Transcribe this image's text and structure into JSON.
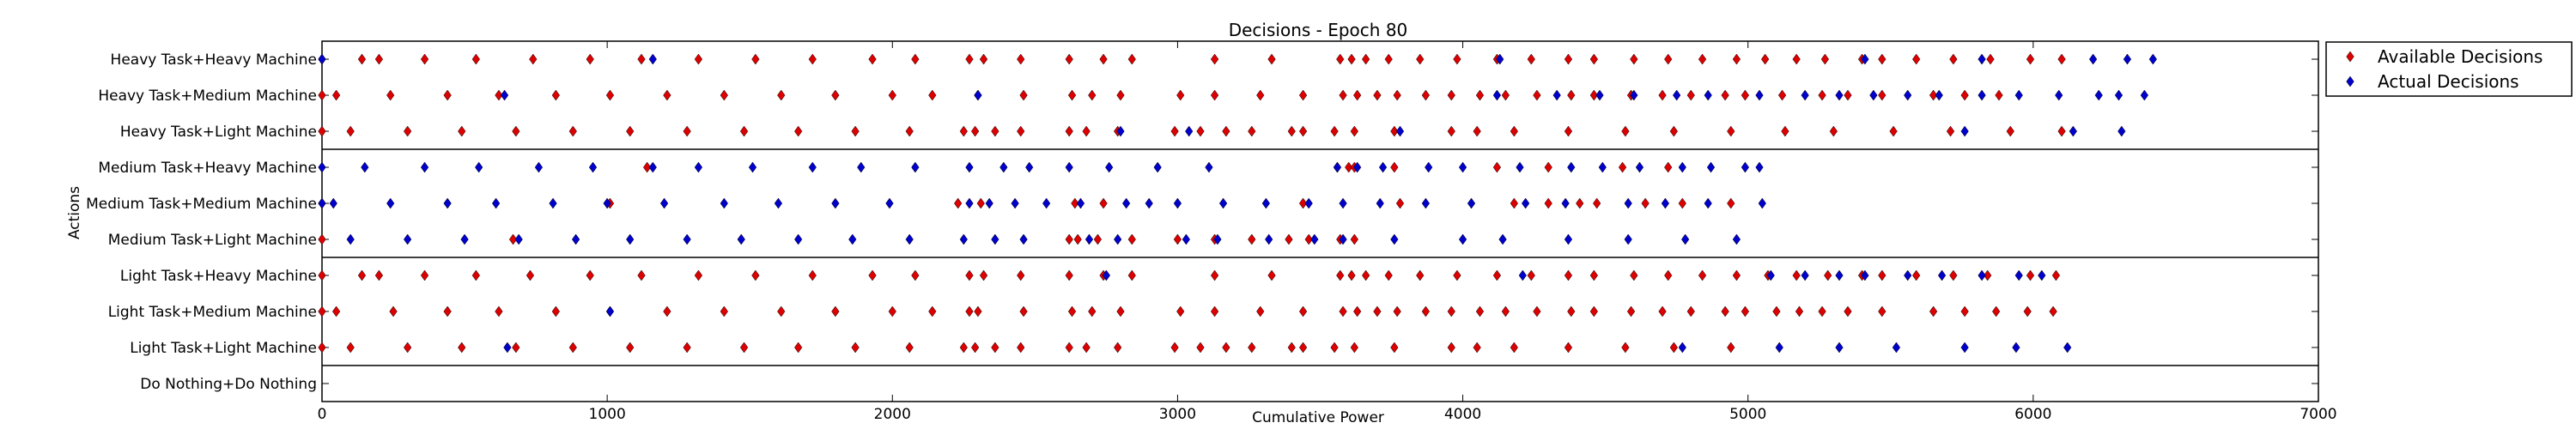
{
  "chart_data": {
    "type": "scatter",
    "title": "Decisions - Epoch 80",
    "xlabel": "Cumulative Power",
    "ylabel": "Actions",
    "xlim": [
      0,
      7000
    ],
    "xticks": [
      0,
      1000,
      2000,
      3000,
      4000,
      5000,
      6000,
      7000
    ],
    "categories": [
      "Heavy Task+Heavy Machine",
      "Heavy Task+Medium Machine",
      "Heavy Task+Light Machine",
      "Medium Task+Heavy Machine",
      "Medium Task+Medium Machine",
      "Medium Task+Light Machine",
      "Light Task+Heavy Machine",
      "Light Task+Medium Machine",
      "Light Task+Light Machine",
      "Do Nothing+Do Nothing"
    ],
    "group_separators_after": [
      2,
      5,
      8
    ],
    "legend": {
      "placement": "outside-top-right"
    },
    "colors": {
      "available": "#dd0000",
      "actual": "#0000cc"
    },
    "series": [
      {
        "name": "Available Decisions",
        "marker": "diamond",
        "points": [
          {
            "category": "Heavy Task+Heavy Machine",
            "x": [
              0,
              140,
              200,
              360,
              540,
              740,
              940,
              1120,
              1320,
              1520,
              1720,
              1930,
              2080,
              2270,
              2320,
              2450,
              2620,
              2740,
              2840,
              3130,
              3330,
              3570,
              3610,
              3660,
              3740,
              3850,
              3980,
              4120,
              4240,
              4370,
              4460,
              4600,
              4720,
              4840,
              4960,
              5060,
              5170,
              5270,
              5400,
              5470,
              5590,
              5720,
              5850,
              5990,
              6100
            ]
          },
          {
            "category": "Heavy Task+Medium Machine",
            "x": [
              0,
              50,
              240,
              440,
              620,
              820,
              1010,
              1210,
              1410,
              1610,
              1800,
              2000,
              2140,
              2300,
              2460,
              2630,
              2700,
              2800,
              3010,
              3130,
              3290,
              3440,
              3580,
              3630,
              3700,
              3770,
              3870,
              3960,
              4060,
              4150,
              4260,
              4380,
              4460,
              4590,
              4700,
              4800,
              4920,
              4990,
              5120,
              5260,
              5350,
              5470,
              5650,
              5760,
              5880
            ]
          },
          {
            "category": "Heavy Task+Light Machine",
            "x": [
              0,
              100,
              300,
              490,
              680,
              880,
              1080,
              1280,
              1480,
              1670,
              1870,
              2060,
              2250,
              2290,
              2360,
              2450,
              2620,
              2680,
              2790,
              2990,
              3080,
              3170,
              3260,
              3400,
              3440,
              3550,
              3620,
              3760,
              3960,
              4050,
              4180,
              4370,
              4570,
              4740,
              4940,
              5130,
              5300,
              5510,
              5710,
              5920,
              6100
            ]
          },
          {
            "category": "Medium Task+Heavy Machine",
            "x": [
              1140,
              3560,
              3600,
              3620,
              3760,
              4120,
              4300,
              4560,
              4720
            ]
          },
          {
            "category": "Medium Task+Medium Machine",
            "x": [
              0,
              1010,
              2230,
              2310,
              2640,
              2740,
              3440,
              3780,
              4180,
              4300,
              4410,
              4470,
              4640,
              4770,
              4940
            ]
          },
          {
            "category": "Medium Task+Light Machine",
            "x": [
              0,
              670,
              2620,
              2650,
              2720,
              2840,
              3000,
              3130,
              3260,
              3390,
              3460,
              3570,
              3620
            ]
          },
          {
            "category": "Light Task+Heavy Machine",
            "x": [
              0,
              140,
              200,
              360,
              540,
              730,
              940,
              1120,
              1320,
              1520,
              1720,
              1930,
              2080,
              2270,
              2320,
              2450,
              2620,
              2740,
              2840,
              3130,
              3330,
              3570,
              3610,
              3660,
              3740,
              3850,
              3980,
              4120,
              4240,
              4370,
              4460,
              4600,
              4720,
              4840,
              4960,
              5070,
              5170,
              5280,
              5400,
              5470,
              5590,
              5720,
              5840,
              5990,
              6080
            ]
          },
          {
            "category": "Light Task+Medium Machine",
            "x": [
              0,
              50,
              250,
              440,
              620,
              820,
              1010,
              1210,
              1410,
              1610,
              1800,
              2000,
              2140,
              2270,
              2300,
              2460,
              2630,
              2700,
              2800,
              3010,
              3130,
              3290,
              3440,
              3580,
              3630,
              3700,
              3770,
              3870,
              3960,
              4060,
              4150,
              4260,
              4380,
              4460,
              4590,
              4700,
              4800,
              4920,
              4990,
              5100,
              5180,
              5260,
              5350,
              5470,
              5650,
              5760,
              5870,
              5980,
              6070
            ]
          },
          {
            "category": "Light Task+Light Machine",
            "x": [
              0,
              100,
              300,
              490,
              680,
              880,
              1080,
              1280,
              1480,
              1670,
              1870,
              2060,
              2250,
              2290,
              2360,
              2450,
              2620,
              2680,
              2790,
              2990,
              3080,
              3170,
              3260,
              3400,
              3440,
              3550,
              3620,
              3760,
              3960,
              4050,
              4180,
              4370,
              4570,
              4740,
              4940
            ]
          }
        ]
      },
      {
        "name": "Actual Decisions",
        "marker": "diamond",
        "points": [
          {
            "category": "Heavy Task+Heavy Machine",
            "x": [
              0,
              1160,
              4130,
              5410,
              5820,
              6210,
              6330,
              6420
            ]
          },
          {
            "category": "Heavy Task+Medium Machine",
            "x": [
              640,
              2300,
              4120,
              4330,
              4480,
              4600,
              4750,
              4860,
              5040,
              5200,
              5320,
              5440,
              5560,
              5670,
              5820,
              5950,
              6090,
              6230,
              6300,
              6390
            ]
          },
          {
            "category": "Heavy Task+Light Machine",
            "x": [
              2800,
              3040,
              3780,
              5760,
              6140,
              6310
            ]
          },
          {
            "category": "Medium Task+Heavy Machine",
            "x": [
              0,
              150,
              360,
              550,
              760,
              950,
              1160,
              1320,
              1510,
              1720,
              1890,
              2080,
              2270,
              2390,
              2480,
              2620,
              2760,
              2930,
              3110,
              3560,
              3630,
              3720,
              3880,
              4000,
              4200,
              4380,
              4490,
              4620,
              4770,
              4870,
              4990,
              5040
            ]
          },
          {
            "category": "Medium Task+Medium Machine",
            "x": [
              0,
              40,
              240,
              440,
              610,
              810,
              1000,
              1200,
              1410,
              1600,
              1800,
              1990,
              2270,
              2340,
              2430,
              2540,
              2660,
              2820,
              2900,
              3000,
              3160,
              3310,
              3460,
              3580,
              3710,
              3870,
              4030,
              4220,
              4360,
              4580,
              4710,
              4860,
              5050
            ]
          },
          {
            "category": "Medium Task+Light Machine",
            "x": [
              100,
              300,
              500,
              690,
              890,
              1080,
              1280,
              1470,
              1670,
              1860,
              2060,
              2250,
              2360,
              2460,
              2690,
              2790,
              3030,
              3140,
              3320,
              3480,
              3580,
              3760,
              4000,
              4140,
              4370,
              4580,
              4780,
              4960
            ]
          },
          {
            "category": "Light Task+Heavy Machine",
            "x": [
              2750,
              4210,
              5080,
              5200,
              5320,
              5410,
              5560,
              5680,
              5820,
              5950,
              6030
            ]
          },
          {
            "category": "Light Task+Medium Machine",
            "x": [
              1010
            ]
          },
          {
            "category": "Light Task+Light Machine",
            "x": [
              650,
              4770,
              5110,
              5320,
              5520,
              5760,
              5940,
              6120
            ]
          }
        ]
      }
    ]
  }
}
